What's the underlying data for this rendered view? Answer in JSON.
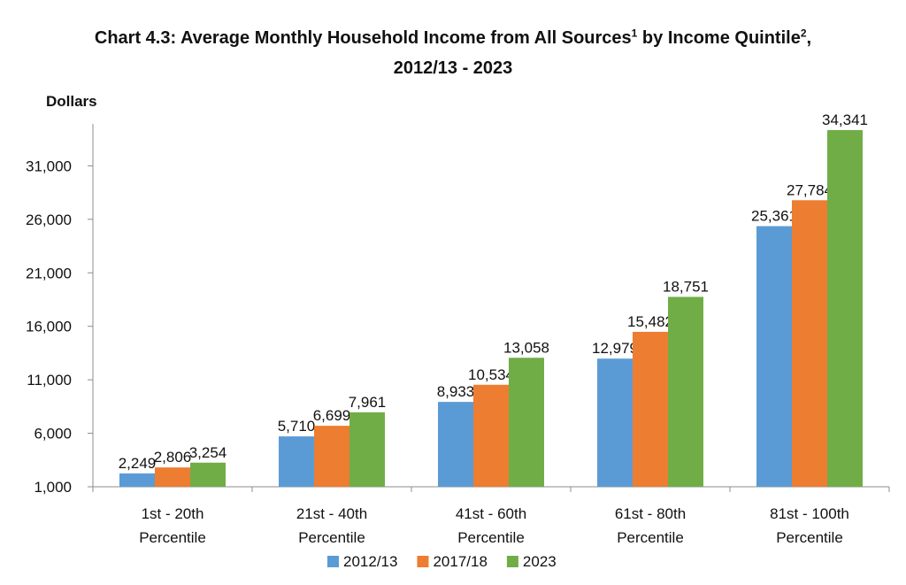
{
  "chart_data": {
    "type": "bar",
    "title_main": "Chart 4.3: Average Monthly Household Income from All Sources",
    "title_sup1": "1",
    "title_mid": " by Income Quintile",
    "title_sup2": "2",
    "title_end": ",",
    "title_line2": "2012/13 - 2023",
    "ylabel": "Dollars",
    "ylim": [
      1000,
      34341
    ],
    "yticks": [
      "1,000",
      "6,000",
      "11,000",
      "16,000",
      "21,000",
      "26,000",
      "31,000"
    ],
    "ytick_values": [
      1000,
      6000,
      11000,
      16000,
      21000,
      26000,
      31000
    ],
    "categories": [
      [
        "1st - 20th",
        "Percentile"
      ],
      [
        "21st - 40th",
        "Percentile"
      ],
      [
        "41st - 60th",
        "Percentile"
      ],
      [
        "61st - 80th",
        "Percentile"
      ],
      [
        "81st - 100th",
        "Percentile"
      ]
    ],
    "series": [
      {
        "name": "2012/13",
        "color": "#5B9BD5",
        "values": [
          2249,
          5710,
          8933,
          12979,
          25361
        ],
        "labels": [
          "2,249",
          "5,710",
          "8,933",
          "12,979",
          "25,361"
        ]
      },
      {
        "name": "2017/18",
        "color": "#ED7D31",
        "values": [
          2806,
          6699,
          10534,
          15482,
          27784
        ],
        "labels": [
          "2,806",
          "6,699",
          "10,534",
          "15,482",
          "27,784"
        ]
      },
      {
        "name": "2023",
        "color": "#70AD47",
        "values": [
          3254,
          7961,
          13058,
          18751,
          34341
        ],
        "labels": [
          "3,254",
          "7,961",
          "13,058",
          "18,751",
          "34,341"
        ]
      }
    ],
    "grid": false,
    "legend_position": "bottom"
  }
}
